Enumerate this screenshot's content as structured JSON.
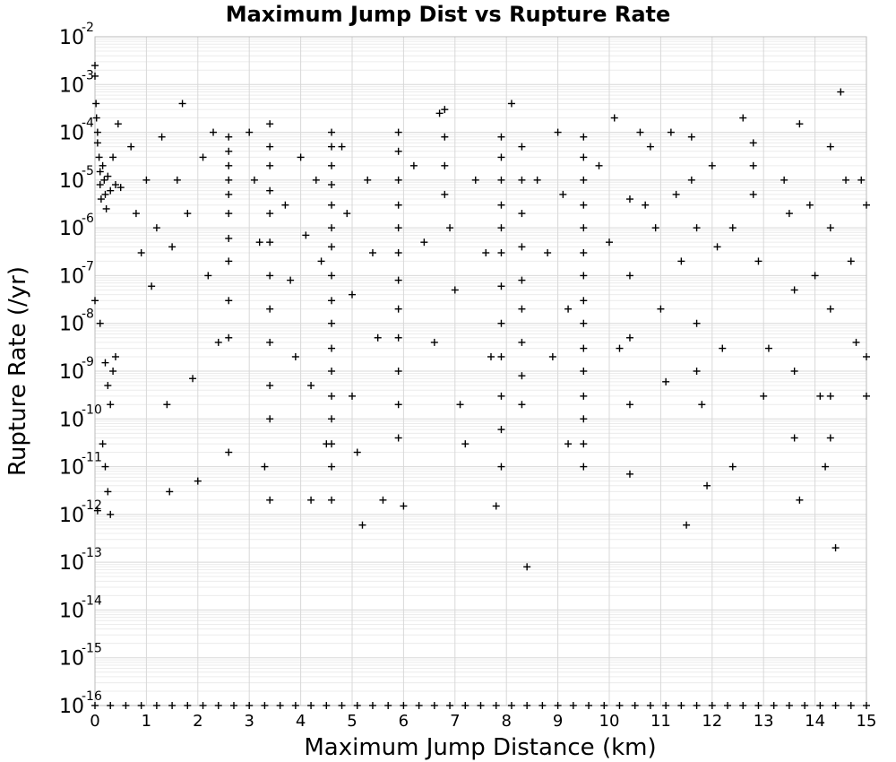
{
  "chart_data": {
    "type": "scatter",
    "title": "Maximum Jump Dist vs Rupture Rate",
    "xlabel": "Maximum Jump Distance (km)",
    "ylabel": "Rupture Rate (/yr)",
    "xlim": [
      0,
      15
    ],
    "ylim": [
      1e-16,
      0.01
    ],
    "yscale": "log",
    "grid": true,
    "marker": "+",
    "x_ticks": [
      "0",
      "1",
      "2",
      "3",
      "4",
      "5",
      "6",
      "7",
      "8",
      "9",
      "10",
      "11",
      "12",
      "13",
      "14",
      "15"
    ],
    "y_ticks": [
      {
        "base": "10",
        "exp": "-16"
      },
      {
        "base": "10",
        "exp": "-15"
      },
      {
        "base": "10",
        "exp": "-14"
      },
      {
        "base": "10",
        "exp": "-13"
      },
      {
        "base": "10",
        "exp": "-12"
      },
      {
        "base": "10",
        "exp": "-11"
      },
      {
        "base": "10",
        "exp": "-10"
      },
      {
        "base": "10",
        "exp": "-9"
      },
      {
        "base": "10",
        "exp": "-8"
      },
      {
        "base": "10",
        "exp": "-7"
      },
      {
        "base": "10",
        "exp": "-6"
      },
      {
        "base": "10",
        "exp": "-5"
      },
      {
        "base": "10",
        "exp": "-4"
      },
      {
        "base": "10",
        "exp": "-3"
      },
      {
        "base": "10",
        "exp": "-2"
      }
    ],
    "series": [
      {
        "points": [
          [
            0.0,
            0.0025
          ],
          [
            0.0,
            0.0015
          ],
          [
            0.02,
            0.0004
          ],
          [
            0.03,
            0.0002
          ],
          [
            0.05,
            0.0001
          ],
          [
            0.05,
            6e-05
          ],
          [
            0.08,
            3e-05
          ],
          [
            0.1,
            1.5e-05
          ],
          [
            0.1,
            8e-06
          ],
          [
            0.12,
            4e-06
          ],
          [
            0.15,
            2e-05
          ],
          [
            0.18,
            1e-05
          ],
          [
            0.2,
            5e-06
          ],
          [
            0.22,
            2.5e-06
          ],
          [
            0.25,
            1.2e-05
          ],
          [
            0.3,
            6e-06
          ],
          [
            0.35,
            3e-05
          ],
          [
            0.4,
            8e-06
          ],
          [
            0.45,
            0.00015
          ],
          [
            0.5,
            7e-06
          ],
          [
            0.0,
            3e-08
          ],
          [
            0.1,
            1e-08
          ],
          [
            0.2,
            1.5e-09
          ],
          [
            0.25,
            5e-10
          ],
          [
            0.3,
            2e-10
          ],
          [
            0.35,
            1e-09
          ],
          [
            0.15,
            3e-11
          ],
          [
            0.2,
            1e-11
          ],
          [
            0.25,
            3e-12
          ],
          [
            0.05,
            1.2e-12
          ],
          [
            0.3,
            1e-12
          ],
          [
            0.4,
            2e-09
          ],
          [
            0.7,
            5e-05
          ],
          [
            0.8,
            2e-06
          ],
          [
            0.9,
            3e-07
          ],
          [
            1.0,
            1e-05
          ],
          [
            1.1,
            6e-08
          ],
          [
            1.2,
            1e-06
          ],
          [
            1.3,
            8e-05
          ],
          [
            1.4,
            2e-10
          ],
          [
            1.45,
            3e-12
          ],
          [
            1.5,
            4e-07
          ],
          [
            1.6,
            1e-05
          ],
          [
            1.7,
            0.0004
          ],
          [
            1.8,
            2e-06
          ],
          [
            1.9,
            7e-10
          ],
          [
            2.0,
            5e-12
          ],
          [
            2.1,
            3e-05
          ],
          [
            2.2,
            1e-07
          ],
          [
            2.3,
            0.0001
          ],
          [
            2.4,
            4e-09
          ],
          [
            2.6,
            8e-05
          ],
          [
            2.6,
            4e-05
          ],
          [
            2.6,
            2e-05
          ],
          [
            2.6,
            1e-05
          ],
          [
            2.6,
            5e-06
          ],
          [
            2.6,
            2e-06
          ],
          [
            2.6,
            6e-07
          ],
          [
            2.6,
            2e-07
          ],
          [
            2.6,
            3e-08
          ],
          [
            2.6,
            5e-09
          ],
          [
            2.6,
            2e-11
          ],
          [
            3.0,
            0.0001
          ],
          [
            3.1,
            1e-05
          ],
          [
            3.2,
            5e-07
          ],
          [
            3.3,
            1e-11
          ],
          [
            3.4,
            0.00015
          ],
          [
            3.4,
            5e-05
          ],
          [
            3.4,
            2e-05
          ],
          [
            3.4,
            6e-06
          ],
          [
            3.4,
            2e-06
          ],
          [
            3.4,
            5e-07
          ],
          [
            3.4,
            1e-07
          ],
          [
            3.4,
            2e-08
          ],
          [
            3.4,
            4e-09
          ],
          [
            3.4,
            5e-10
          ],
          [
            3.4,
            1e-10
          ],
          [
            3.4,
            2e-12
          ],
          [
            3.7,
            3e-06
          ],
          [
            3.8,
            8e-08
          ],
          [
            3.9,
            2e-09
          ],
          [
            4.0,
            3e-05
          ],
          [
            4.1,
            7e-07
          ],
          [
            4.2,
            5e-10
          ],
          [
            4.2,
            2e-12
          ],
          [
            4.3,
            1e-05
          ],
          [
            4.4,
            2e-07
          ],
          [
            4.5,
            3e-11
          ],
          [
            4.6,
            0.0001
          ],
          [
            4.6,
            5e-05
          ],
          [
            4.6,
            2e-05
          ],
          [
            4.6,
            8e-06
          ],
          [
            4.6,
            3e-06
          ],
          [
            4.6,
            1e-06
          ],
          [
            4.6,
            4e-07
          ],
          [
            4.6,
            1e-07
          ],
          [
            4.6,
            3e-08
          ],
          [
            4.6,
            1e-08
          ],
          [
            4.6,
            3e-09
          ],
          [
            4.6,
            1e-09
          ],
          [
            4.6,
            3e-10
          ],
          [
            4.6,
            1e-10
          ],
          [
            4.6,
            3e-11
          ],
          [
            4.6,
            1e-11
          ],
          [
            4.6,
            2e-12
          ],
          [
            4.8,
            5e-05
          ],
          [
            4.9,
            2e-06
          ],
          [
            5.0,
            4e-08
          ],
          [
            5.0,
            3e-10
          ],
          [
            5.1,
            2e-11
          ],
          [
            5.2,
            6e-13
          ],
          [
            5.3,
            1e-05
          ],
          [
            5.4,
            3e-07
          ],
          [
            5.5,
            5e-09
          ],
          [
            5.6,
            2e-12
          ],
          [
            5.9,
            0.0001
          ],
          [
            5.9,
            4e-05
          ],
          [
            5.9,
            1e-05
          ],
          [
            5.9,
            3e-06
          ],
          [
            5.9,
            1e-06
          ],
          [
            5.9,
            3e-07
          ],
          [
            5.9,
            8e-08
          ],
          [
            5.9,
            2e-08
          ],
          [
            5.9,
            5e-09
          ],
          [
            5.9,
            1e-09
          ],
          [
            5.9,
            2e-10
          ],
          [
            5.9,
            4e-11
          ],
          [
            6.0,
            1.5e-12
          ],
          [
            6.2,
            2e-05
          ],
          [
            6.4,
            5e-07
          ],
          [
            6.6,
            4e-09
          ],
          [
            6.7,
            0.00025
          ],
          [
            6.8,
            0.0003
          ],
          [
            6.8,
            8e-05
          ],
          [
            6.8,
            2e-05
          ],
          [
            6.8,
            5e-06
          ],
          [
            6.9,
            1e-06
          ],
          [
            7.0,
            5e-08
          ],
          [
            7.1,
            2e-10
          ],
          [
            7.2,
            3e-11
          ],
          [
            7.4,
            1e-05
          ],
          [
            7.6,
            3e-07
          ],
          [
            7.7,
            2e-09
          ],
          [
            7.8,
            1.5e-12
          ],
          [
            7.9,
            8e-05
          ],
          [
            7.9,
            3e-05
          ],
          [
            7.9,
            1e-05
          ],
          [
            7.9,
            3e-06
          ],
          [
            7.9,
            1e-06
          ],
          [
            7.9,
            3e-07
          ],
          [
            7.9,
            6e-08
          ],
          [
            7.9,
            1e-08
          ],
          [
            7.9,
            2e-09
          ],
          [
            7.9,
            3e-10
          ],
          [
            7.9,
            6e-11
          ],
          [
            7.9,
            1e-11
          ],
          [
            8.1,
            0.0004
          ],
          [
            8.3,
            5e-05
          ],
          [
            8.3,
            1e-05
          ],
          [
            8.3,
            2e-06
          ],
          [
            8.3,
            4e-07
          ],
          [
            8.3,
            8e-08
          ],
          [
            8.3,
            2e-08
          ],
          [
            8.3,
            4e-09
          ],
          [
            8.3,
            8e-10
          ],
          [
            8.3,
            2e-10
          ],
          [
            8.4,
            8e-14
          ],
          [
            8.6,
            1e-05
          ],
          [
            8.8,
            3e-07
          ],
          [
            8.9,
            2e-09
          ],
          [
            9.0,
            0.0001
          ],
          [
            9.1,
            5e-06
          ],
          [
            9.2,
            2e-08
          ],
          [
            9.2,
            3e-11
          ],
          [
            9.5,
            8e-05
          ],
          [
            9.5,
            3e-05
          ],
          [
            9.5,
            1e-05
          ],
          [
            9.5,
            3e-06
          ],
          [
            9.5,
            1e-06
          ],
          [
            9.5,
            3e-07
          ],
          [
            9.5,
            1e-07
          ],
          [
            9.5,
            3e-08
          ],
          [
            9.5,
            1e-08
          ],
          [
            9.5,
            3e-09
          ],
          [
            9.5,
            1e-09
          ],
          [
            9.5,
            3e-10
          ],
          [
            9.5,
            1e-10
          ],
          [
            9.5,
            3e-11
          ],
          [
            9.5,
            1e-11
          ],
          [
            9.8,
            2e-05
          ],
          [
            10.0,
            5e-07
          ],
          [
            10.1,
            0.0002
          ],
          [
            10.2,
            3e-09
          ],
          [
            10.4,
            4e-06
          ],
          [
            10.4,
            1e-07
          ],
          [
            10.4,
            5e-09
          ],
          [
            10.4,
            2e-10
          ],
          [
            10.4,
            7e-12
          ],
          [
            10.6,
            0.0001
          ],
          [
            10.7,
            3e-06
          ],
          [
            10.8,
            5e-05
          ],
          [
            10.9,
            1e-06
          ],
          [
            11.0,
            2e-08
          ],
          [
            11.1,
            6e-10
          ],
          [
            11.2,
            0.0001
          ],
          [
            11.3,
            5e-06
          ],
          [
            11.4,
            2e-07
          ],
          [
            11.5,
            6e-13
          ],
          [
            11.6,
            8e-05
          ],
          [
            11.6,
            1e-05
          ],
          [
            11.7,
            1e-06
          ],
          [
            11.7,
            1e-08
          ],
          [
            11.7,
            1e-09
          ],
          [
            11.8,
            2e-10
          ],
          [
            11.9,
            4e-12
          ],
          [
            12.0,
            2e-05
          ],
          [
            12.1,
            4e-07
          ],
          [
            12.2,
            3e-09
          ],
          [
            12.4,
            1e-06
          ],
          [
            12.4,
            1e-11
          ],
          [
            12.6,
            0.0002
          ],
          [
            12.8,
            6e-05
          ],
          [
            12.8,
            2e-05
          ],
          [
            12.8,
            5e-06
          ],
          [
            12.9,
            2e-07
          ],
          [
            13.0,
            3e-10
          ],
          [
            13.1,
            3e-09
          ],
          [
            13.4,
            1e-05
          ],
          [
            13.5,
            2e-06
          ],
          [
            13.6,
            5e-08
          ],
          [
            13.6,
            1e-09
          ],
          [
            13.6,
            4e-11
          ],
          [
            13.7,
            2e-12
          ],
          [
            13.7,
            0.00015
          ],
          [
            13.9,
            3e-06
          ],
          [
            14.0,
            1e-07
          ],
          [
            14.1,
            3e-10
          ],
          [
            14.2,
            1e-11
          ],
          [
            14.3,
            5e-05
          ],
          [
            14.3,
            1e-06
          ],
          [
            14.3,
            2e-08
          ],
          [
            14.3,
            3e-10
          ],
          [
            14.3,
            4e-11
          ],
          [
            14.4,
            2e-13
          ],
          [
            14.5,
            0.0007
          ],
          [
            14.6,
            1e-05
          ],
          [
            14.7,
            2e-07
          ],
          [
            14.8,
            4e-09
          ],
          [
            14.9,
            1e-05
          ],
          [
            15.0,
            3e-06
          ],
          [
            15.0,
            2e-09
          ],
          [
            15.0,
            3e-10
          ]
        ]
      },
      {
        "points": [
          [
            0.0,
            1e-16
          ],
          [
            0.3,
            1e-16
          ],
          [
            0.6,
            1e-16
          ],
          [
            0.9,
            1e-16
          ],
          [
            1.2,
            1e-16
          ],
          [
            1.5,
            1e-16
          ],
          [
            1.8,
            1e-16
          ],
          [
            2.1,
            1e-16
          ],
          [
            2.4,
            1e-16
          ],
          [
            2.7,
            1e-16
          ],
          [
            3.0,
            1e-16
          ],
          [
            3.3,
            1e-16
          ],
          [
            3.6,
            1e-16
          ],
          [
            3.9,
            1e-16
          ],
          [
            4.2,
            1e-16
          ],
          [
            4.5,
            1e-16
          ],
          [
            4.8,
            1e-16
          ],
          [
            5.1,
            1e-16
          ],
          [
            5.4,
            1e-16
          ],
          [
            5.7,
            1e-16
          ],
          [
            6.0,
            1e-16
          ],
          [
            6.3,
            1e-16
          ],
          [
            6.6,
            1e-16
          ],
          [
            6.9,
            1e-16
          ],
          [
            7.2,
            1e-16
          ],
          [
            7.5,
            1e-16
          ],
          [
            7.8,
            1e-16
          ],
          [
            8.1,
            1e-16
          ],
          [
            8.4,
            1e-16
          ],
          [
            8.7,
            1e-16
          ],
          [
            9.0,
            1e-16
          ],
          [
            9.3,
            1e-16
          ],
          [
            9.6,
            1e-16
          ],
          [
            9.9,
            1e-16
          ],
          [
            10.2,
            1e-16
          ],
          [
            10.5,
            1e-16
          ],
          [
            10.8,
            1e-16
          ],
          [
            11.1,
            1e-16
          ],
          [
            11.4,
            1e-16
          ],
          [
            11.7,
            1e-16
          ],
          [
            12.0,
            1e-16
          ],
          [
            12.3,
            1e-16
          ],
          [
            12.6,
            1e-16
          ],
          [
            12.9,
            1e-16
          ],
          [
            13.2,
            1e-16
          ],
          [
            13.5,
            1e-16
          ],
          [
            13.8,
            1e-16
          ],
          [
            14.1,
            1e-16
          ],
          [
            14.4,
            1e-16
          ],
          [
            14.7,
            1e-16
          ],
          [
            15.0,
            1e-16
          ]
        ]
      }
    ]
  }
}
